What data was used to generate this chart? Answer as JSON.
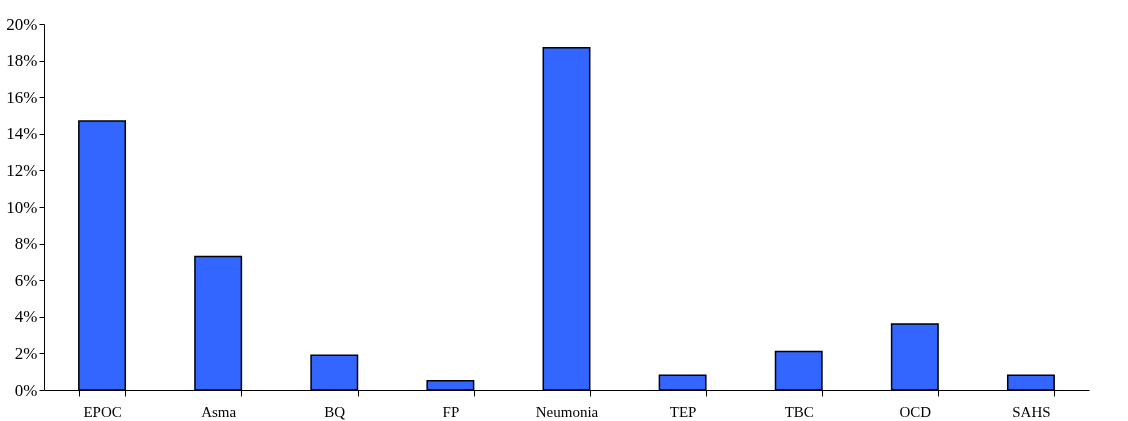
{
  "chart_data": {
    "type": "bar",
    "categories": [
      "EPOC",
      "Asma",
      "BQ",
      "FP",
      "Neumonia",
      "TEP",
      "TBC",
      "OCD",
      "SAHS"
    ],
    "values": [
      14.7,
      7.3,
      1.9,
      0.5,
      18.7,
      0.8,
      2.1,
      3.6,
      0.8
    ],
    "color": "#3366ff",
    "ylim": [
      0,
      20
    ],
    "yticks": [
      {
        "value": 0,
        "label": "0%"
      },
      {
        "value": 2,
        "label": "2%"
      },
      {
        "value": 4,
        "label": "4%"
      },
      {
        "value": 6,
        "label": "6%"
      },
      {
        "value": 8,
        "label": "8%"
      },
      {
        "value": 10,
        "label": "10%"
      },
      {
        "value": 12,
        "label": "12%"
      },
      {
        "value": 14,
        "label": "14%"
      },
      {
        "value": 16,
        "label": "16%"
      },
      {
        "value": 18,
        "label": "18%"
      },
      {
        "value": 20,
        "label": "20%"
      }
    ],
    "grid": false,
    "legend": false
  }
}
